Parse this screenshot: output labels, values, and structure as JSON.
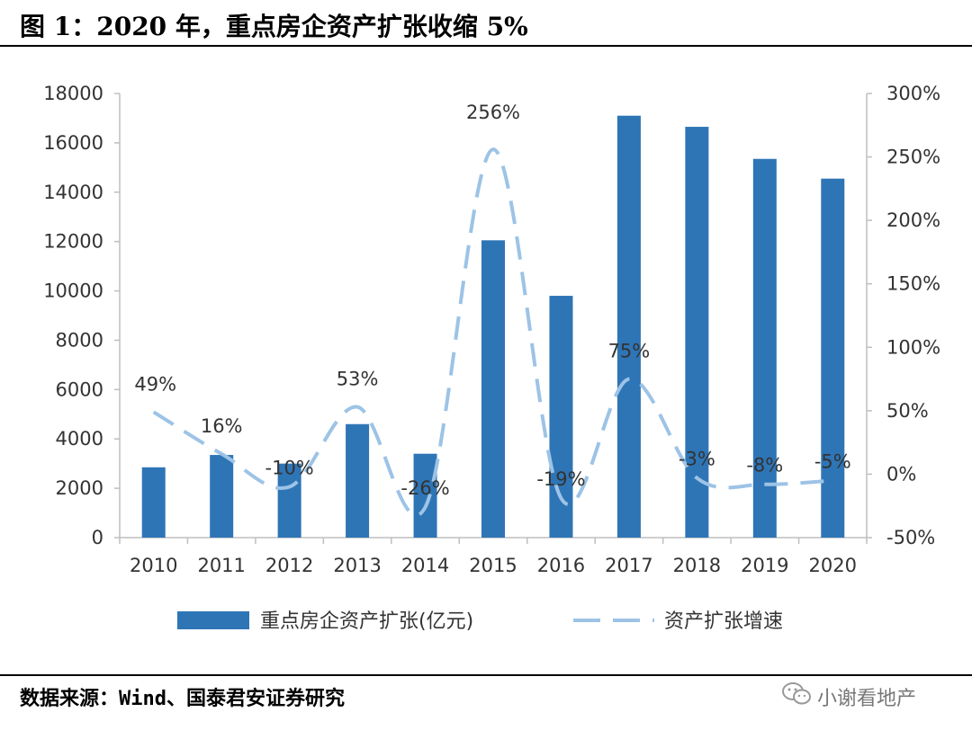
{
  "figure": {
    "title": "图 1：2020 年，重点房企资产扩张收缩 5%",
    "source": "数据来源：Wind、国泰君安证券研究",
    "watermark": "小谢看地产"
  },
  "colors": {
    "bar": "#2e75b6",
    "line": "#9dc3e6",
    "axis": "#bfbfbf",
    "text": "#333333"
  },
  "chart_data": {
    "type": "bar",
    "categories": [
      "2010",
      "2011",
      "2012",
      "2013",
      "2014",
      "2015",
      "2016",
      "2017",
      "2018",
      "2019",
      "2020"
    ],
    "series": [
      {
        "name": "重点房企资产扩张(亿元)",
        "type": "bar",
        "axis": "left",
        "values": [
          2850,
          3350,
          3000,
          4600,
          3400,
          12050,
          9800,
          17100,
          16650,
          15350,
          14550
        ]
      },
      {
        "name": "资产扩张增速",
        "type": "line",
        "style": "dashed",
        "axis": "right",
        "values": [
          49,
          16,
          -10,
          53,
          -26,
          256,
          -19,
          75,
          -3,
          -8,
          -5
        ],
        "labels": [
          "49%",
          "16%",
          "-10%",
          "53%",
          "-26%",
          "256%",
          "-19%",
          "75%",
          "-3%",
          "-8%",
          "-5%"
        ]
      }
    ],
    "ylim": [
      0,
      18000
    ],
    "yticks": [
      "0",
      "2000",
      "4000",
      "6000",
      "8000",
      "10000",
      "12000",
      "14000",
      "16000",
      "18000"
    ],
    "y2lim": [
      -50,
      300
    ],
    "y2ticks": [
      "-50%",
      "0%",
      "50%",
      "100%",
      "150%",
      "200%",
      "250%",
      "300%"
    ],
    "legend_position": "bottom",
    "grid": false
  }
}
